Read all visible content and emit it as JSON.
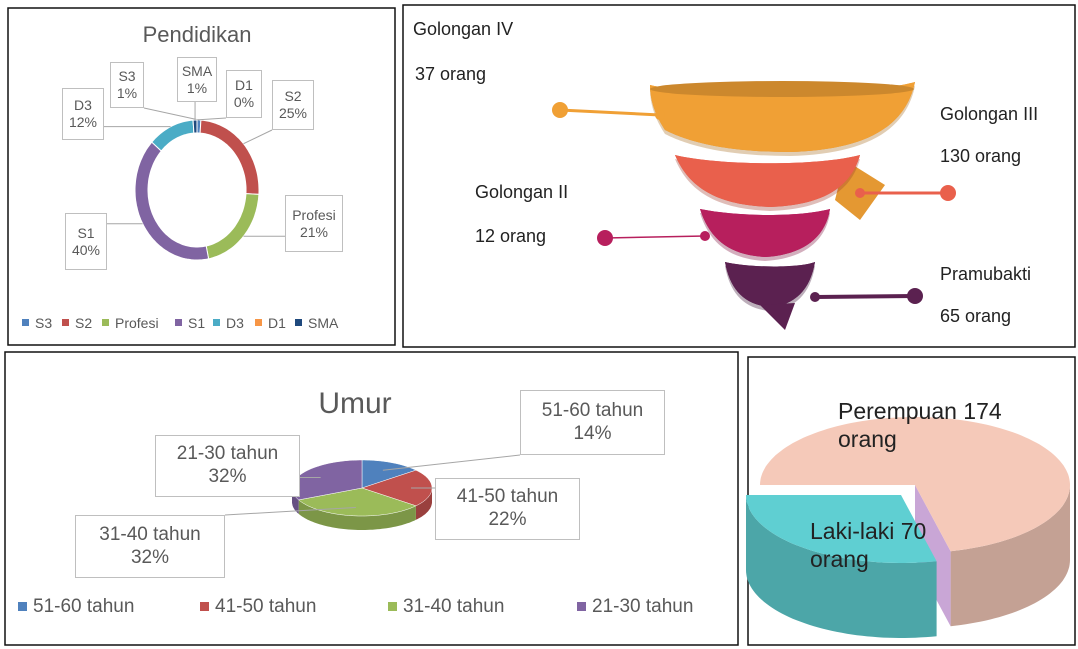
{
  "chart_data": [
    {
      "type": "doughnut",
      "title": "Pendidikan",
      "categories": [
        "S3",
        "S2",
        "Profesi",
        "S1",
        "D3",
        "D1",
        "SMA"
      ],
      "values": [
        1,
        25,
        21,
        40,
        12,
        0,
        1
      ],
      "value_labels": [
        "1%",
        "25%",
        "21%",
        "40%",
        "12%",
        "0%",
        "1%"
      ],
      "colors": [
        "#4f81bd",
        "#c0504d",
        "#9bbb59",
        "#8064a2",
        "#4bacc6",
        "#f79646",
        "#1f497d"
      ],
      "legend": "bottom"
    },
    {
      "type": "funnel",
      "categories": [
        "Golongan IV",
        "Golongan III",
        "Golongan II",
        "Pramubakti"
      ],
      "values": [
        37,
        130,
        12,
        65
      ],
      "value_labels": [
        "37 orang",
        "130 orang",
        "12 orang",
        "65 orang"
      ],
      "colors": [
        "#f0a035",
        "#e9604c",
        "#b71f5d",
        "#5b2150"
      ]
    },
    {
      "type": "pie",
      "title": "Umur",
      "categories": [
        "51-60 tahun",
        "41-50 tahun",
        "31-40 tahun",
        "21-30 tahun"
      ],
      "values": [
        14,
        22,
        32,
        32
      ],
      "value_labels": [
        "14%",
        "22%",
        "32%",
        "32%"
      ],
      "colors": [
        "#4f81bd",
        "#c0504d",
        "#9bbb59",
        "#8064a2"
      ],
      "legend": "bottom"
    },
    {
      "type": "pie",
      "values": [
        174,
        70
      ],
      "value_labels": [
        "Perempuan 174 orang",
        "Laki-laki 70 orang"
      ],
      "colors": [
        "#f5c9b9",
        "#5fcfd2"
      ]
    }
  ]
}
